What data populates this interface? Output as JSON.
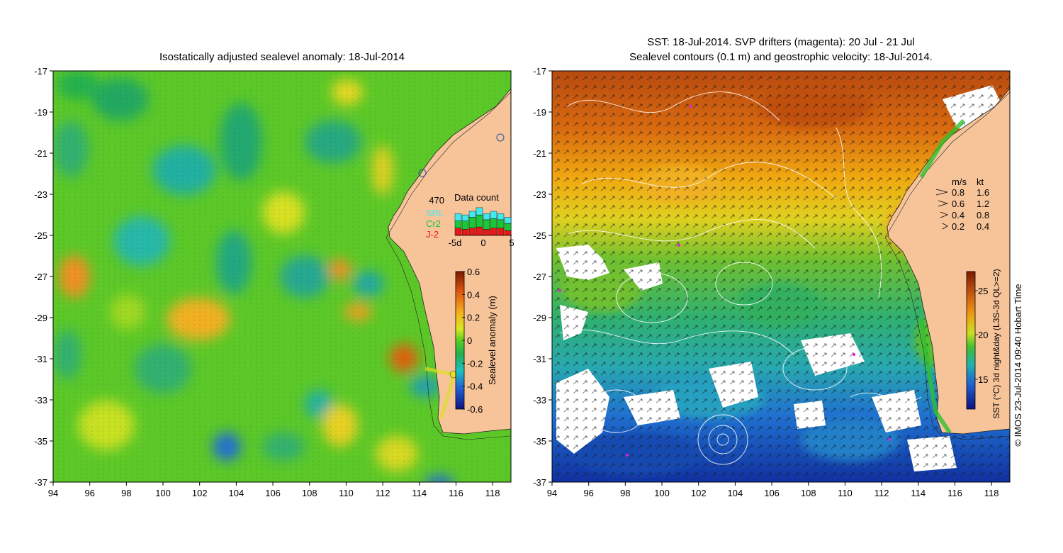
{
  "left_map": {
    "title": "Isostatically adjusted sealevel anomaly: 18-Jul-2014",
    "y_ticks": [
      "-17",
      "-19",
      "-21",
      "-23",
      "-25",
      "-27",
      "-29",
      "-31",
      "-33",
      "-35",
      "-37"
    ],
    "x_ticks": [
      "94",
      "96",
      "98",
      "100",
      "102",
      "104",
      "106",
      "108",
      "110",
      "112",
      "114",
      "116",
      "118"
    ],
    "colorbar": {
      "label": "Sealevel anomaly (m)",
      "ticks": [
        "0.6",
        "0.4",
        "0.2",
        "0",
        "-0.2",
        "-0.4",
        "-0.6"
      ]
    },
    "data_count": {
      "total": "470",
      "title": "Data count",
      "legend": [
        "SRL",
        "Cr2",
        "J-2"
      ],
      "legend_colors": [
        "#40e8f0",
        "#18c838",
        "#e81818"
      ],
      "x_ticks": [
        "-5d",
        "0",
        "5"
      ],
      "bars": [
        {
          "J2": 6,
          "Cr2": 6,
          "SRL": 6
        },
        {
          "J2": 5,
          "Cr2": 7,
          "SRL": 5
        },
        {
          "J2": 6,
          "Cr2": 9,
          "SRL": 5
        },
        {
          "J2": 7,
          "Cr2": 10,
          "SRL": 6
        },
        {
          "J2": 5,
          "Cr2": 8,
          "SRL": 5
        },
        {
          "J2": 6,
          "Cr2": 8,
          "SRL": 6
        },
        {
          "J2": 6,
          "Cr2": 7,
          "SRL": 5
        },
        {
          "J2": 4,
          "Cr2": 6,
          "SRL": 5
        }
      ]
    }
  },
  "right_map": {
    "title_line1": "SST: 18-Jul-2014. SVP drifters (magenta): 20 Jul - 21 Jul",
    "title_line2": "Sealevel contours (0.1 m) and geostrophic velocity: 18-Jul-2014.",
    "y_ticks": [
      "-17",
      "-19",
      "-21",
      "-23",
      "-25",
      "-27",
      "-29",
      "-31",
      "-33",
      "-35",
      "-37"
    ],
    "x_ticks": [
      "94",
      "96",
      "98",
      "100",
      "102",
      "104",
      "106",
      "108",
      "110",
      "112",
      "114",
      "116",
      "118"
    ],
    "velocity_legend": {
      "header_ms": "m/s",
      "header_kt": "kt",
      "rows": [
        {
          "ms": "0.8",
          "kt": "1.6"
        },
        {
          "ms": "0.6",
          "kt": "1.2"
        },
        {
          "ms": "0.4",
          "kt": "0.8"
        },
        {
          "ms": "0.2",
          "kt": "0.4"
        }
      ]
    },
    "colorbar": {
      "label": "SST (°C) 3d night&day (L3S-3d QL>=2)",
      "ticks": [
        "25",
        "20",
        "15"
      ]
    }
  },
  "credit": "© IMOS 23-Jul-2014 09:40 Hobart Time"
}
